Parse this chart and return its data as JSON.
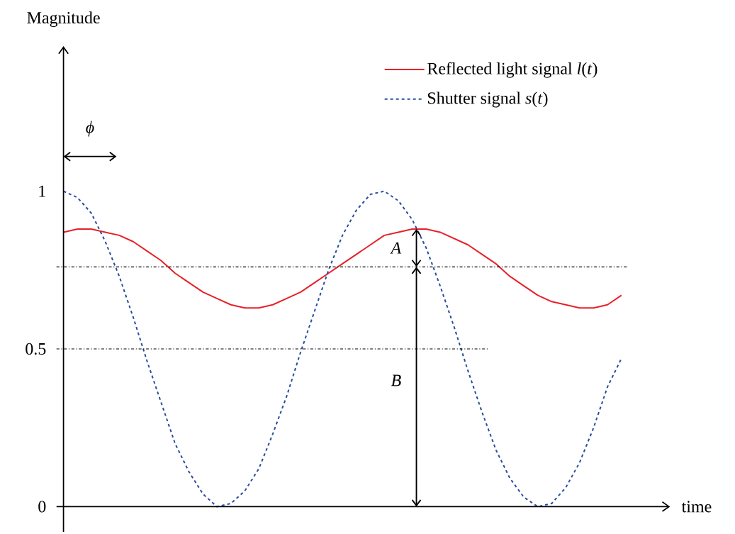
{
  "chart_data": {
    "type": "line",
    "xlabel": "time",
    "ylabel": "Magnitude",
    "categories": [
      null,
      null,
      null,
      null,
      null,
      null,
      null,
      null,
      null,
      null,
      null,
      null,
      null,
      null,
      null,
      null,
      null,
      null,
      null,
      null,
      null,
      null,
      null,
      null,
      null,
      null,
      null,
      null,
      null,
      null,
      null,
      null,
      null,
      null,
      null,
      null,
      null,
      null,
      null,
      null,
      null
    ],
    "series": [
      {
        "name": "Reflected light signal *l*(*t*)",
        "color": "#e8202a",
        "line_style": "solid",
        "values": [
          0.87,
          0.88,
          0.88,
          0.87,
          0.86,
          0.84,
          0.81,
          0.78,
          0.74,
          0.71,
          0.68,
          0.66,
          0.64,
          0.63,
          0.63,
          0.64,
          0.66,
          0.68,
          0.71,
          0.74,
          0.77,
          0.8,
          0.83,
          0.86,
          0.87,
          0.88,
          0.88,
          0.87,
          0.85,
          0.83,
          0.8,
          0.77,
          0.73,
          0.7,
          0.67,
          0.65,
          0.64,
          0.63,
          0.63,
          0.64,
          0.67
        ]
      },
      {
        "name": "Shutter signal *s*(*t*)",
        "color": "#2a4d9e",
        "line_style": "dashed",
        "values": [
          1.0,
          0.98,
          0.93,
          0.84,
          0.73,
          0.6,
          0.46,
          0.33,
          0.2,
          0.11,
          0.04,
          0.0,
          0.01,
          0.05,
          0.12,
          0.23,
          0.35,
          0.49,
          0.62,
          0.75,
          0.86,
          0.94,
          0.99,
          1.0,
          0.97,
          0.91,
          0.82,
          0.7,
          0.57,
          0.43,
          0.3,
          0.18,
          0.09,
          0.03,
          0.0,
          0.01,
          0.06,
          0.14,
          0.25,
          0.38,
          0.47
        ]
      }
    ],
    "ylim": [
      -0.08,
      1.46
    ],
    "yticks": [
      0,
      0.5,
      1
    ],
    "tick_labels": "y",
    "ref_lines": [
      {
        "axis": "y",
        "value": 0.76,
        "color": "#000000",
        "line_style": "dashdot"
      },
      {
        "axis": "y",
        "value": 0.5,
        "color": "#000000",
        "line_style": "dashdot"
      }
    ],
    "annotations": [
      "*A*",
      "*B*",
      "*ϕ*"
    ],
    "legend": "top right",
    "marker": "none",
    "grid": false
  }
}
